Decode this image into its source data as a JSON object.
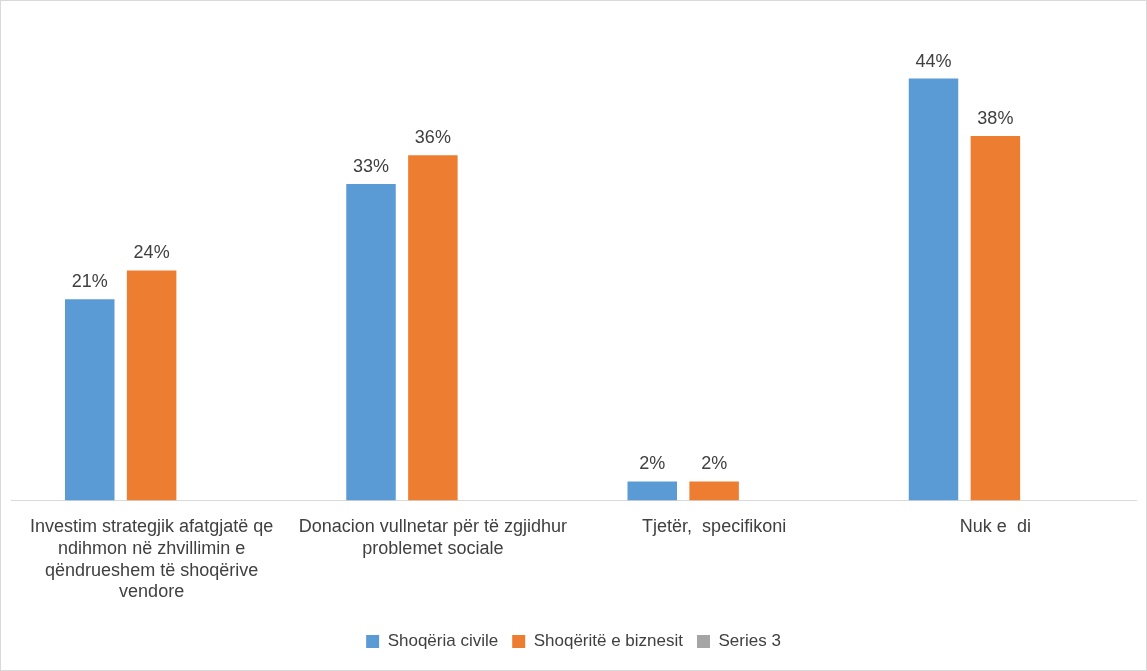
{
  "chart_data": {
    "type": "bar",
    "categories": [
      "Investim strategjik afatgjatë qe ndihmon në zhvillimin e qëndrueshem të shoqërive vendore",
      "Donacion vullnetar për të zgjidhur problemet sociale",
      "Tjetër,  specifikoni",
      "Nuk e  di"
    ],
    "series": [
      {
        "name": "Shoqëria civile",
        "color": "#5b9bd5",
        "values": [
          21,
          33,
          2,
          44
        ],
        "value_labels": [
          "21%",
          "33%",
          "2%",
          "44%"
        ]
      },
      {
        "name": "Shoqëritë e biznesit",
        "color": "#ed7d31",
        "values": [
          24,
          36,
          2,
          38
        ],
        "value_labels": [
          "24%",
          "36%",
          "2%",
          "38%"
        ]
      },
      {
        "name": "Series 3",
        "color": "#a5a5a5",
        "values": [
          null,
          null,
          null,
          null
        ]
      }
    ],
    "legend": "bottom",
    "grid": false,
    "tick_labels": "x"
  }
}
